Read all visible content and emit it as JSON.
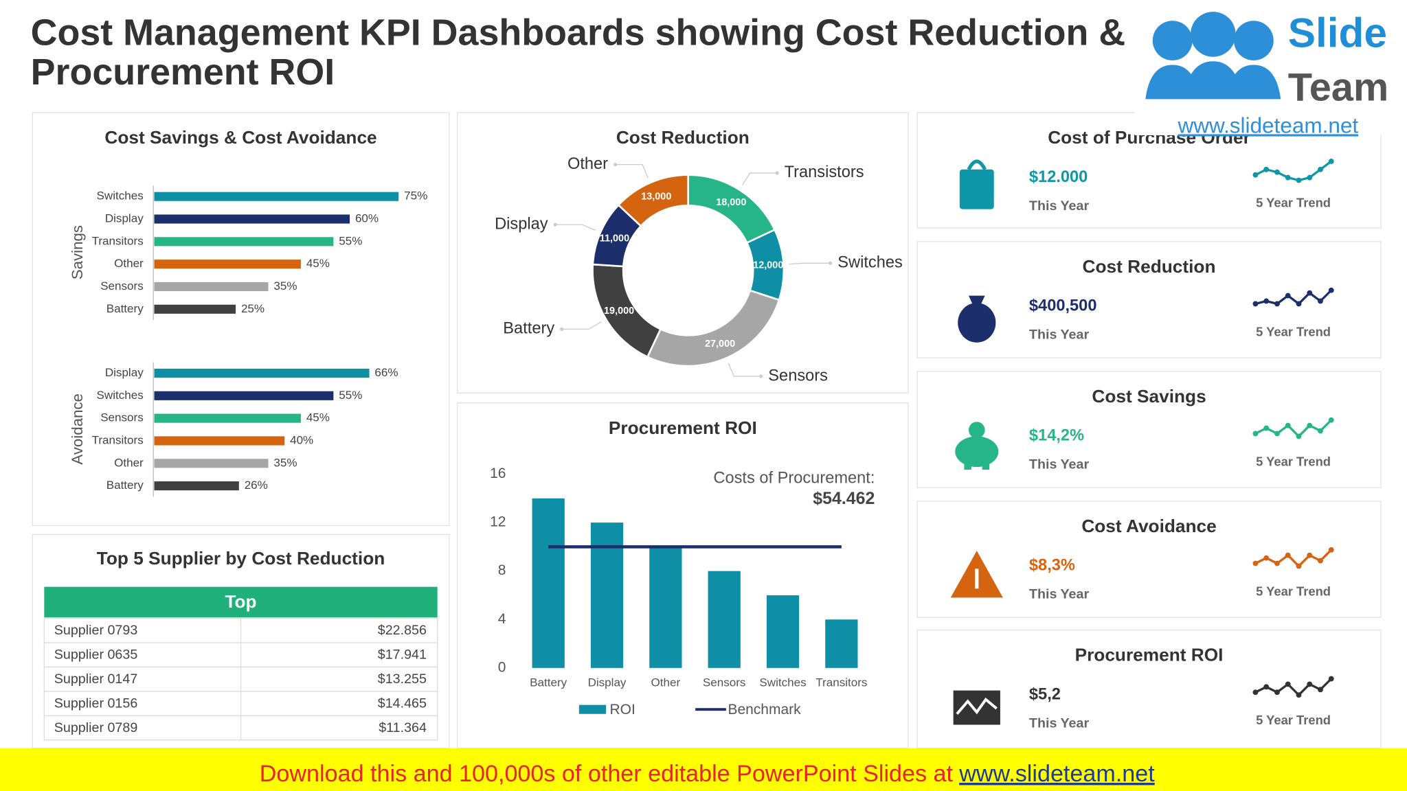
{
  "header": {
    "title_lines": [
      "Cost Management KPI Dashboards showing Cost Reduction &",
      "Procurement ROI"
    ]
  },
  "logo": {
    "brand": "Slide",
    "brand2": "Team",
    "url": "www.slideteam.net"
  },
  "chart_data": [
    {
      "type": "hbar",
      "title": "Cost Savings & Cost Avoidance",
      "groups": [
        {
          "name": "Savings",
          "categories": [
            "Switches",
            "Display",
            "Transitors",
            "Other",
            "Sensors",
            "Battery"
          ],
          "values": [
            75,
            60,
            55,
            45,
            35,
            25
          ],
          "value_labels": [
            "75%",
            "60%",
            "55%",
            "45%",
            "35%",
            "25%"
          ],
          "colors": [
            "#0e8fa6",
            "#1c2e6b",
            "#25b586",
            "#d4640f",
            "#a6a6a6",
            "#404040"
          ]
        },
        {
          "name": "Avoidance",
          "categories": [
            "Display",
            "Switches",
            "Sensors",
            "Transitors",
            "Other",
            "Battery"
          ],
          "values": [
            66,
            55,
            45,
            40,
            35,
            26
          ],
          "value_labels": [
            "66%",
            "55%",
            "45%",
            "40%",
            "35%",
            "26%"
          ],
          "colors": [
            "#0e8fa6",
            "#1c2e6b",
            "#25b586",
            "#d4640f",
            "#a6a6a6",
            "#404040"
          ]
        }
      ]
    },
    {
      "type": "donut",
      "title": "Cost Reduction",
      "categories": [
        "Transistors",
        "Switches",
        "Sensors",
        "Battery",
        "Display",
        "Other"
      ],
      "values": [
        18000,
        12000,
        27000,
        19000,
        11000,
        13000
      ],
      "value_labels": [
        "18,000",
        "12,000",
        "27,000",
        "19,000",
        "11,000",
        "13,000"
      ],
      "colors": [
        "#25b586",
        "#0e8fa6",
        "#a6a6a6",
        "#404040",
        "#1c2e6b",
        "#d4640f"
      ]
    },
    {
      "type": "bar",
      "title": "Procurement ROI",
      "categories": [
        "Battery",
        "Display",
        "Other",
        "Sensors",
        "Switches",
        "Transitors"
      ],
      "series": [
        {
          "name": "ROI",
          "type": "bar",
          "color": "#0e8fa6",
          "values": [
            14,
            12,
            10,
            8,
            6,
            4
          ]
        },
        {
          "name": "Benchmark",
          "type": "line",
          "color": "#1c2e6b",
          "values": [
            10,
            10,
            10,
            10,
            10,
            10
          ]
        }
      ],
      "ylim": [
        0,
        16
      ],
      "yticks": [
        0,
        4,
        8,
        12,
        16
      ],
      "annotation": {
        "label": "Costs of Procurement:",
        "value": "$54.462"
      }
    }
  ],
  "table": {
    "title": "Top 5 Supplier by Cost Reduction",
    "header": "Top",
    "rows": [
      [
        "Supplier 0793",
        "$22.856"
      ],
      [
        "Supplier 0635",
        "$17.941"
      ],
      [
        "Supplier 0147",
        "$13.255"
      ],
      [
        "Supplier 0156",
        "$14.465"
      ],
      [
        "Supplier 0789",
        "$11.364"
      ]
    ]
  },
  "kpis": [
    {
      "title": "Cost of Purchase Order",
      "value": "$12.000",
      "period": "This Year",
      "trend_label": "5 Year Trend",
      "color": "#0e97a8",
      "trend": [
        3,
        5,
        4,
        2,
        1,
        2,
        5,
        8
      ]
    },
    {
      "title": "Cost Reduction",
      "value": "$400,500",
      "period": "This Year",
      "trend_label": "5 Year Trend",
      "color": "#1c2e6b",
      "trend": [
        3,
        4,
        3,
        6,
        3,
        7,
        4,
        8
      ]
    },
    {
      "title": "Cost Savings",
      "value": "$14,2%",
      "period": "This Year",
      "trend_label": "5 Year Trend",
      "color": "#25b586",
      "trend": [
        3,
        5,
        3,
        6,
        2,
        6,
        4,
        8
      ]
    },
    {
      "title": "Cost Avoidance",
      "value": "$8,3%",
      "period": "This Year",
      "trend_label": "5 Year Trend",
      "color": "#d4640f",
      "trend": [
        3,
        5,
        3,
        6,
        2,
        6,
        4,
        8
      ]
    },
    {
      "title": "Procurement ROI",
      "value": "$5,2",
      "period": "This Year",
      "trend_label": "5 Year Trend",
      "color": "#333333",
      "trend": [
        3,
        5,
        3,
        6,
        2,
        6,
        4,
        8
      ]
    }
  ],
  "footer": {
    "text": "Download this and 100,000s of other editable PowerPoint Slides at",
    "link": "www.slideteam.net"
  }
}
